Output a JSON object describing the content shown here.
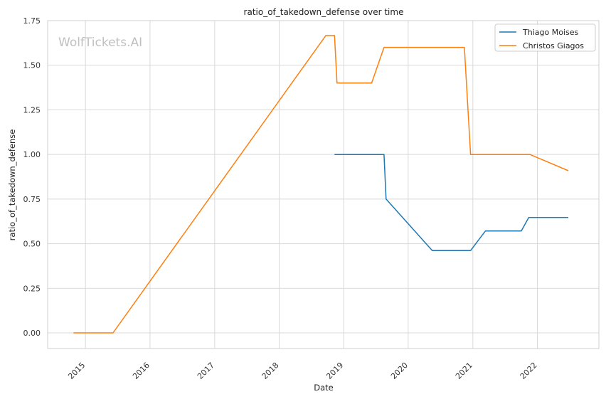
{
  "chart_data": {
    "type": "line",
    "title": "ratio_of_takedown_defense over time",
    "xlabel": "Date",
    "ylabel": "ratio_of_takedown_defense",
    "watermark": "WolfTickets.AI",
    "x_axis_type": "date",
    "xlim": [
      "2014-06-01",
      "2022-12-15"
    ],
    "ylim": [
      -0.0875,
      1.75
    ],
    "x_ticks": [
      {
        "date": "2015-01-01",
        "label": "2015"
      },
      {
        "date": "2016-01-01",
        "label": "2016"
      },
      {
        "date": "2017-01-01",
        "label": "2017"
      },
      {
        "date": "2018-01-01",
        "label": "2018"
      },
      {
        "date": "2019-01-01",
        "label": "2019"
      },
      {
        "date": "2020-01-01",
        "label": "2020"
      },
      {
        "date": "2021-01-01",
        "label": "2021"
      },
      {
        "date": "2022-01-01",
        "label": "2022"
      }
    ],
    "y_ticks": [
      {
        "value": 0.0,
        "label": "0.00"
      },
      {
        "value": 0.25,
        "label": "0.25"
      },
      {
        "value": 0.5,
        "label": "0.50"
      },
      {
        "value": 0.75,
        "label": "0.75"
      },
      {
        "value": 1.0,
        "label": "1.00"
      },
      {
        "value": 1.25,
        "label": "1.25"
      },
      {
        "value": 1.5,
        "label": "1.50"
      },
      {
        "value": 1.75,
        "label": "1.75"
      }
    ],
    "grid": true,
    "legend_position": "top-right",
    "series": [
      {
        "name": "Thiago Moises",
        "color": "#1f77b4",
        "points": [
          {
            "x": "2018-11-10",
            "y": 1.0
          },
          {
            "x": "2019-08-17",
            "y": 1.0
          },
          {
            "x": "2019-08-29",
            "y": 0.75
          },
          {
            "x": "2020-05-16",
            "y": 0.4615
          },
          {
            "x": "2020-12-19",
            "y": 0.4615
          },
          {
            "x": "2021-03-13",
            "y": 0.5714
          },
          {
            "x": "2021-10-02",
            "y": 0.5714
          },
          {
            "x": "2021-11-13",
            "y": 0.6471
          },
          {
            "x": "2022-06-25",
            "y": 0.6471
          }
        ]
      },
      {
        "name": "Christos Giagos",
        "color": "#ff7f0e",
        "points": [
          {
            "x": "2014-10-25",
            "y": 0.0
          },
          {
            "x": "2015-06-06",
            "y": 0.0
          },
          {
            "x": "2018-09-22",
            "y": 1.6667
          },
          {
            "x": "2018-11-10",
            "y": 1.6667
          },
          {
            "x": "2018-11-24",
            "y": 1.4
          },
          {
            "x": "2019-06-08",
            "y": 1.4
          },
          {
            "x": "2019-08-17",
            "y": 1.6
          },
          {
            "x": "2020-11-14",
            "y": 1.6
          },
          {
            "x": "2020-12-19",
            "y": 1.0
          },
          {
            "x": "2021-11-20",
            "y": 1.0
          },
          {
            "x": "2022-06-25",
            "y": 0.9091
          }
        ]
      }
    ]
  }
}
